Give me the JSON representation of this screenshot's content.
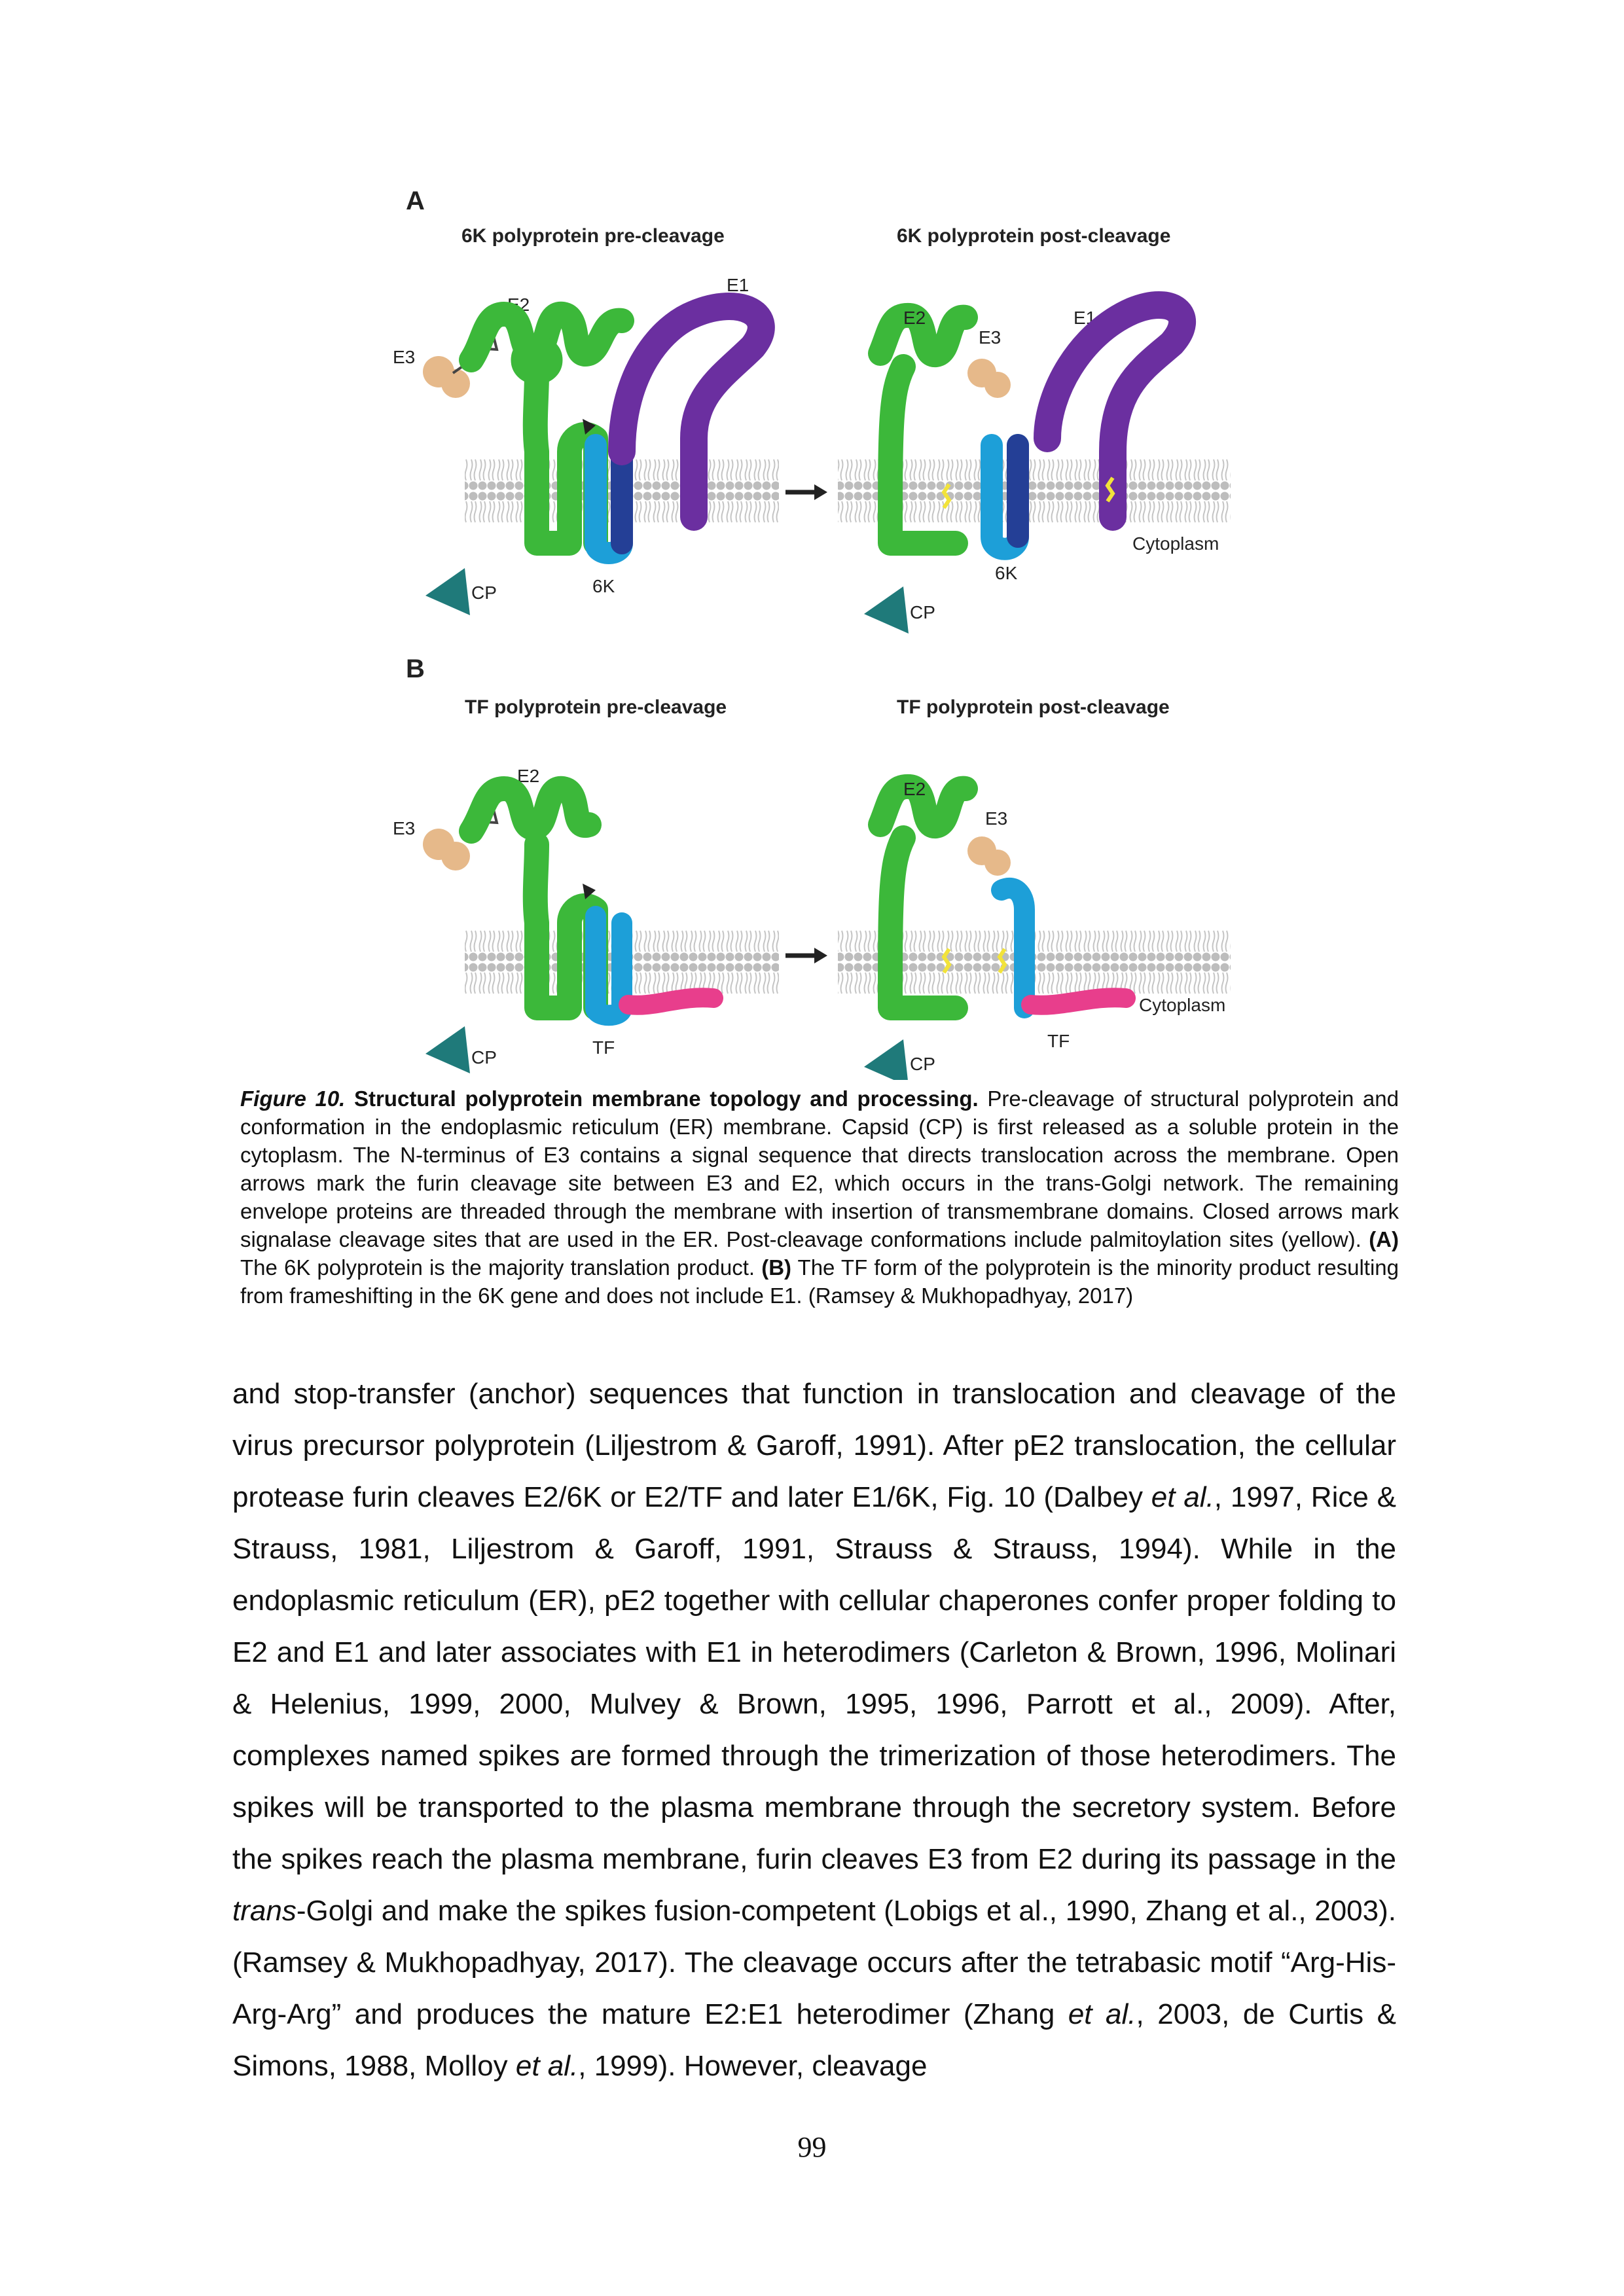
{
  "figure": {
    "panel_a": {
      "letter": "A",
      "title_left": "6K polyprotein pre-cleavage",
      "title_right": "6K polyprotein post-cleavage",
      "labels": {
        "e2": "E2",
        "e1": "E1",
        "e3": "E3",
        "cp": "CP",
        "k6": "6K",
        "cytoplasm": "Cytoplasm"
      }
    },
    "panel_b": {
      "letter": "B",
      "title_left": "TF polyprotein pre-cleavage",
      "title_right": "TF polyprotein post-cleavage",
      "labels": {
        "e2": "E2",
        "e3": "E3",
        "cp": "CP",
        "tf": "TF",
        "cytoplasm": "Cytoplasm"
      }
    },
    "colors": {
      "e2": "#3cb83a",
      "e1": "#6b2fa0",
      "e3": "#e6b98a",
      "cp": "#1f7a7a",
      "k6_light": "#1d9fd8",
      "k6_dark": "#243f96",
      "tf": "#e83e8c",
      "palmitoyl": "#f2e33a",
      "membrane": "#b9b9b9"
    }
  },
  "caption": {
    "fig_label": "Figure 10.",
    "title": "Structural polyprotein membrane topology and processing.",
    "part1": "Pre-cleavage of structural polyprotein and conformation in the endoplasmic reticulum (ER) membrane. Capsid (CP) is first released as a soluble protein in the cytoplasm. The N-terminus of E3 contains a signal sequence that directs translocation across the membrane. Open arrows mark the furin cleavage site between E3 and E2, which occurs in the trans-Golgi network. The remaining envelope proteins are threaded through the membrane with insertion of transmembrane domains. Closed arrows mark signalase cleavage sites that are used in the ER. Post-cleavage conformations include palmitoylation sites (yellow).",
    "a_marker": "(A)",
    "part2": "The 6K polyprotein is the majority translation product.",
    "b_marker": "(B)",
    "part3": "The TF form of the polyprotein is the minority product resulting from frameshifting in the 6K gene and does not include E1. (Ramsey & Mukhopadhyay, 2017)"
  },
  "body": {
    "s1": "and stop-transfer (anchor) sequences that function in translocation and cleavage of the virus precursor polyprotein (Liljestrom & Garoff, 1991). After pE2 translocation, the cellular protease furin cleaves E2/6K or E2/TF and later E1/6K, Fig. 10 (Dalbey ",
    "i1": "et al.",
    "s2": ", 1997, Rice & Strauss, 1981, Liljestrom & Garoff, 1991, Strauss & Strauss, 1994). While in the endoplasmic reticulum (ER), pE2 together with cellular chaperones confer proper folding to E2 and E1 and later associates with E1 in heterodimers (Carleton & Brown, 1996, Molinari & Helenius, 1999, 2000, Mulvey & Brown, 1995, 1996, Parrott et al., 2009). After, complexes named spikes are formed through the trimerization of those heterodimers. The spikes will be transported to the plasma membrane through the secretory system. Before the spikes reach the plasma membrane, furin cleaves E3 from E2 during its passage in the ",
    "i2": "trans",
    "s3": "-Golgi and make the spikes fusion-competent (Lobigs et al., 1990, Zhang et al., 2003). (Ramsey & Mukhopadhyay, 2017). The cleavage occurs after the tetrabasic motif “Arg-His-Arg-Arg” and produces the mature E2:E1 heterodimer (Zhang ",
    "i3": "et al.",
    "s4": ", 2003, de Curtis & Simons, 1988, Molloy ",
    "i4": "et al.",
    "s5": ", 1999). However, cleavage"
  },
  "page_number": "99"
}
